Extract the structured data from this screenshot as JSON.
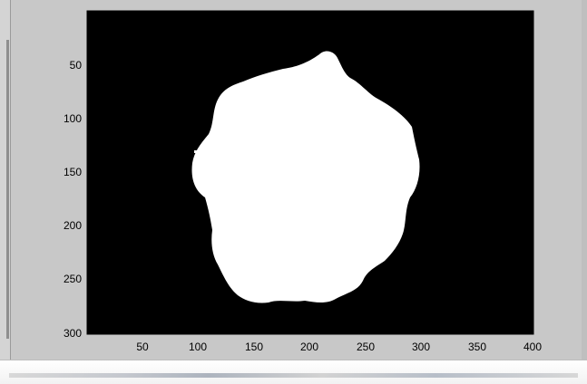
{
  "figure": {
    "title_fragment": "",
    "axes": {
      "xlim": [
        0,
        400
      ],
      "ylim": [
        0,
        300
      ],
      "y_reversed": true,
      "x_ticks": [
        "50",
        "100",
        "150",
        "200",
        "250",
        "300",
        "350",
        "400"
      ],
      "y_ticks": [
        "50",
        "100",
        "150",
        "200",
        "250",
        "300"
      ],
      "background_color": "#000000"
    },
    "image": {
      "description_colors": {
        "foreground": "#ffffff",
        "background": "#000000"
      }
    }
  },
  "colors": {
    "window_bg": "#c8c8c8",
    "axes_bg": "#000000",
    "blob": "#ffffff"
  }
}
